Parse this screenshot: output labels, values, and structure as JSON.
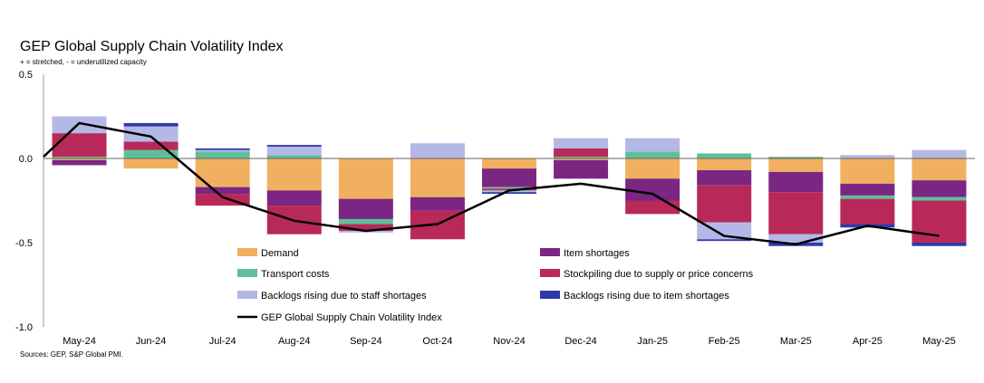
{
  "chart_data": {
    "type": "bar",
    "subtype": "stacked-bar-with-line",
    "title": "GEP Global Supply Chain Volatility Index",
    "subtitle": "+ = stretched, - = underutilized capacity",
    "source": "Sources: GEP, S&P Global PMI.",
    "ylim": [
      -1.0,
      0.5
    ],
    "yticks": [
      0.5,
      0.0,
      -0.5,
      -1.0
    ],
    "ytick_labels": [
      "0.5",
      "0.0",
      "-0.5",
      "-1.0"
    ],
    "categories": [
      "May-24",
      "Jun-24",
      "Jul-24",
      "Aug-24",
      "Sep-24",
      "Oct-24",
      "Nov-24",
      "Dec-24",
      "Jan-25",
      "Feb-25",
      "Mar-25",
      "Apr-25",
      "May-25"
    ],
    "series": [
      {
        "name": "Demand",
        "color": "#F0B060",
        "values": [
          -0.01,
          -0.06,
          -0.17,
          -0.19,
          -0.24,
          -0.23,
          -0.06,
          -0.01,
          -0.12,
          -0.07,
          -0.08,
          -0.15,
          -0.13
        ]
      },
      {
        "name": "Item shortages",
        "color": "#7A2682",
        "values": [
          -0.03,
          0.0,
          -0.04,
          -0.09,
          -0.12,
          -0.08,
          -0.11,
          -0.11,
          -0.13,
          -0.09,
          -0.12,
          -0.07,
          -0.1
        ]
      },
      {
        "name": "Transport costs",
        "color": "#5FBF9A",
        "values": [
          0.01,
          0.05,
          0.04,
          0.02,
          -0.03,
          0.0,
          -0.01,
          0.01,
          0.04,
          0.03,
          0.01,
          -0.02,
          -0.02
        ]
      },
      {
        "name": "Stockpiling due to supply or price concerns",
        "color": "#B8295A",
        "values": [
          0.14,
          0.05,
          -0.07,
          -0.17,
          -0.04,
          -0.17,
          -0.01,
          0.05,
          -0.08,
          -0.22,
          -0.25,
          -0.15,
          -0.25
        ]
      },
      {
        "name": "Backlogs rising due to staff shortages",
        "color": "#B4B8E6",
        "values": [
          0.1,
          0.09,
          0.01,
          0.05,
          -0.01,
          0.09,
          -0.01,
          0.06,
          0.08,
          -0.1,
          -0.05,
          0.02,
          0.05
        ]
      },
      {
        "name": "Backlogs rising due to item shortages",
        "color": "#2E3AA8",
        "values": [
          0.0,
          0.02,
          0.01,
          0.01,
          0.0,
          0.0,
          -0.01,
          0.0,
          0.0,
          -0.01,
          -0.02,
          -0.02,
          -0.02
        ]
      }
    ],
    "line": {
      "name": "GEP Global Supply Chain Volatility Index",
      "color": "#000000",
      "x_start": 0.01,
      "values": [
        0.21,
        0.13,
        -0.23,
        -0.37,
        -0.43,
        -0.39,
        -0.19,
        -0.15,
        -0.21,
        -0.46,
        -0.51,
        -0.4,
        -0.46
      ]
    },
    "legend": {
      "placement": "inside-bottom",
      "entries": [
        "Demand",
        "Item shortages",
        "Transport costs",
        "Stockpiling due to supply or price concerns",
        "Backlogs rising due to staff shortages",
        "Backlogs rising due to item shortages",
        "GEP Global Supply Chain Volatility Index"
      ]
    },
    "grid": false
  }
}
